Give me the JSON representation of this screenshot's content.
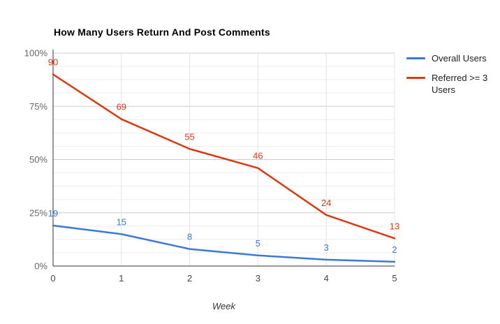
{
  "chart_data": {
    "type": "line",
    "title": "How Many Users Return And Post Comments",
    "xlabel": "Week",
    "ylabel": "",
    "x": [
      0,
      1,
      2,
      3,
      4,
      5
    ],
    "x_tick_labels": [
      "0",
      "1",
      "2",
      "3",
      "4",
      "5"
    ],
    "y_tick_labels": [
      "0%",
      "25%",
      "50%",
      "75%",
      "100%"
    ],
    "ylim": [
      0,
      100
    ],
    "y_major_step": 25,
    "y_minor_step": 6.25,
    "grid": "on",
    "legend_position": "right",
    "series": [
      {
        "name": "Overall Users",
        "color": "#3c78d8",
        "values": [
          19,
          15,
          8,
          5,
          3,
          2
        ]
      },
      {
        "name": "Referred >= 3 Users",
        "color": "#dc3912",
        "values": [
          90,
          69,
          55,
          46,
          24,
          13
        ]
      }
    ],
    "style": {
      "axis_color": "#333333",
      "major_grid_color": "#cccccc",
      "minor_grid_color": "#ededed",
      "vertical_grid_color": "#e3e3e3",
      "y_tick_label_color": "#666666",
      "x_tick_label_color": "#444444",
      "title_color": "#000000",
      "background": "#ffffff"
    }
  }
}
